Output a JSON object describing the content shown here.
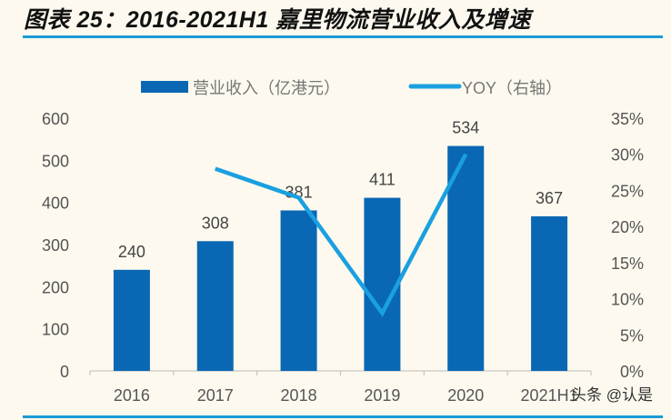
{
  "title": "图表 25：2016-2021H1 嘉里物流营业收入及增速",
  "watermark": "头条 @认是",
  "chart_data": {
    "type": "bar+line",
    "categories": [
      "2016",
      "2017",
      "2018",
      "2019",
      "2020",
      "2021H1"
    ],
    "series": [
      {
        "name": "营业收入（亿港元）",
        "type": "bar",
        "axis": "left",
        "color": "#0a67b3",
        "values": [
          240,
          308,
          381,
          411,
          534,
          367
        ],
        "labels": [
          "240",
          "308",
          "381",
          "411",
          "534",
          "367"
        ]
      },
      {
        "name": "YOY（右轴）",
        "type": "line",
        "axis": "right",
        "color": "#1aa0e0",
        "values": [
          null,
          28,
          24,
          8,
          30,
          null
        ]
      }
    ],
    "ylim": [
      0,
      600
    ],
    "yticks": [
      "0",
      "100",
      "200",
      "300",
      "400",
      "500",
      "600"
    ],
    "y2lim": [
      0,
      35
    ],
    "y2ticks": [
      "0%",
      "5%",
      "10%",
      "15%",
      "20%",
      "25%",
      "30%",
      "35%"
    ],
    "legend": "top",
    "grid": false
  }
}
